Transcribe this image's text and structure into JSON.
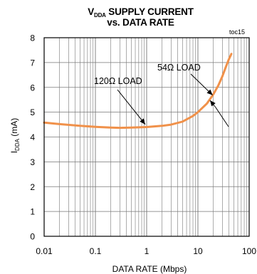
{
  "chart_data": {
    "type": "line",
    "title_line1_main": "V",
    "title_line1_sub": "DDA",
    "title_line1_rest": " SUPPLY CURRENT",
    "title_line2": "vs. DATA RATE",
    "figure_tag": "toc15",
    "xlabel": "DATA RATE (Mbps)",
    "ylabel_main": "I",
    "ylabel_sub": "DDA",
    "ylabel_rest": " (mA)",
    "x_scale": "log",
    "xlim": [
      0.01,
      100
    ],
    "ylim": [
      0,
      8
    ],
    "x_ticks": [
      0.01,
      0.1,
      1,
      10,
      100
    ],
    "x_tick_labels": [
      "0.01",
      "0.1",
      "1",
      "10",
      "100"
    ],
    "y_ticks": [
      0,
      1,
      2,
      3,
      4,
      5,
      6,
      7,
      8
    ],
    "y_tick_labels": [
      "0",
      "1",
      "2",
      "3",
      "4",
      "5",
      "6",
      "7",
      "8"
    ],
    "grid": true,
    "line_color": "#f0914a",
    "series": [
      {
        "x": [
          0.01,
          0.02,
          0.05,
          0.1,
          0.2,
          0.3,
          0.5,
          1,
          2,
          3,
          5,
          8,
          10,
          15,
          20,
          25,
          30,
          35,
          40,
          45
        ],
        "values": [
          4.58,
          4.52,
          4.45,
          4.41,
          4.38,
          4.37,
          4.38,
          4.4,
          4.45,
          4.5,
          4.62,
          4.85,
          5.0,
          5.35,
          5.72,
          6.08,
          6.45,
          6.82,
          7.12,
          7.35
        ]
      }
    ],
    "annotations": [
      {
        "text": "120Ω LOAD",
        "points_to_x": 1,
        "points_to_y": 4.42
      },
      {
        "text": "54Ω LOAD",
        "points_to_x": 20,
        "points_to_y": 5.6
      }
    ]
  }
}
